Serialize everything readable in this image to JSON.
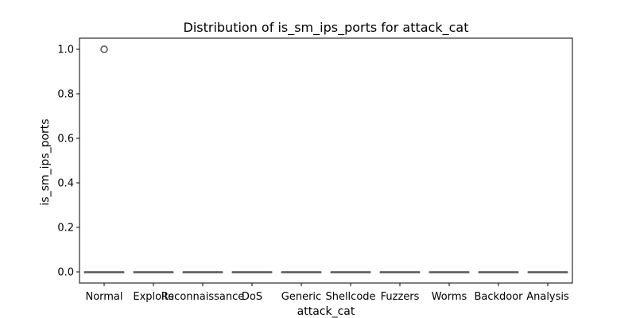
{
  "chart_data": {
    "type": "box",
    "title": "Distribution of is_sm_ips_ports for attack_cat",
    "xlabel": "attack_cat",
    "ylabel": "is_sm_ips_ports",
    "categories": [
      "Normal",
      "Exploits",
      "Reconnaissance",
      "DoS",
      "Generic",
      "Shellcode",
      "Fuzzers",
      "Worms",
      "Backdoor",
      "Analysis"
    ],
    "yticks": [
      "0.0",
      "0.2",
      "0.4",
      "0.6",
      "0.8",
      "1.0"
    ],
    "ylim": [
      -0.05,
      1.05
    ],
    "grid": false,
    "boxes": [
      {
        "category": "Normal",
        "q1": 0,
        "median": 0,
        "q3": 0,
        "whisker_low": 0,
        "whisker_high": 0,
        "outliers": [
          1.0
        ]
      },
      {
        "category": "Exploits",
        "q1": 0,
        "median": 0,
        "q3": 0,
        "whisker_low": 0,
        "whisker_high": 0,
        "outliers": []
      },
      {
        "category": "Reconnaissance",
        "q1": 0,
        "median": 0,
        "q3": 0,
        "whisker_low": 0,
        "whisker_high": 0,
        "outliers": []
      },
      {
        "category": "DoS",
        "q1": 0,
        "median": 0,
        "q3": 0,
        "whisker_low": 0,
        "whisker_high": 0,
        "outliers": []
      },
      {
        "category": "Generic",
        "q1": 0,
        "median": 0,
        "q3": 0,
        "whisker_low": 0,
        "whisker_high": 0,
        "outliers": []
      },
      {
        "category": "Shellcode",
        "q1": 0,
        "median": 0,
        "q3": 0,
        "whisker_low": 0,
        "whisker_high": 0,
        "outliers": []
      },
      {
        "category": "Fuzzers",
        "q1": 0,
        "median": 0,
        "q3": 0,
        "whisker_low": 0,
        "whisker_high": 0,
        "outliers": []
      },
      {
        "category": "Worms",
        "q1": 0,
        "median": 0,
        "q3": 0,
        "whisker_low": 0,
        "whisker_high": 0,
        "outliers": []
      },
      {
        "category": "Backdoor",
        "q1": 0,
        "median": 0,
        "q3": 0,
        "whisker_low": 0,
        "whisker_high": 0,
        "outliers": []
      },
      {
        "category": "Analysis",
        "q1": 0,
        "median": 0,
        "q3": 0,
        "whisker_low": 0,
        "whisker_high": 0,
        "outliers": []
      }
    ],
    "colors": {
      "box_edge": "#555555",
      "axis": "#000000",
      "background": "#ffffff"
    }
  }
}
